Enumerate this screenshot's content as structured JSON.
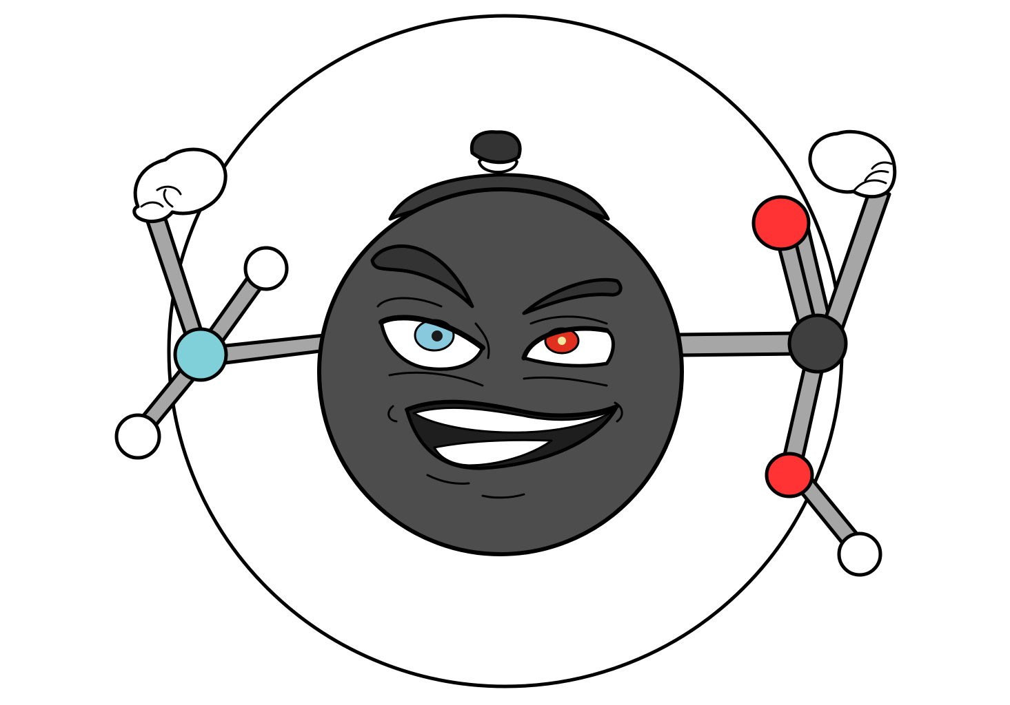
{
  "illustration": {
    "subject": "cartoon-molecule-mascot",
    "colors": {
      "background": "#ffffff",
      "outline": "#000000",
      "body": "#4d4d4d",
      "body_shadow": "#383838",
      "bond": "#a6a6a6",
      "nitrogen_atom": "#7fd0d9",
      "oxygen_atom": "#ff3333",
      "carbon_atom": "#3f3f3f",
      "hydrogen_atom": "#ffffff",
      "left_iris": "#88c9dd",
      "right_iris": "#e03020",
      "teeth": "#ffffff"
    }
  }
}
